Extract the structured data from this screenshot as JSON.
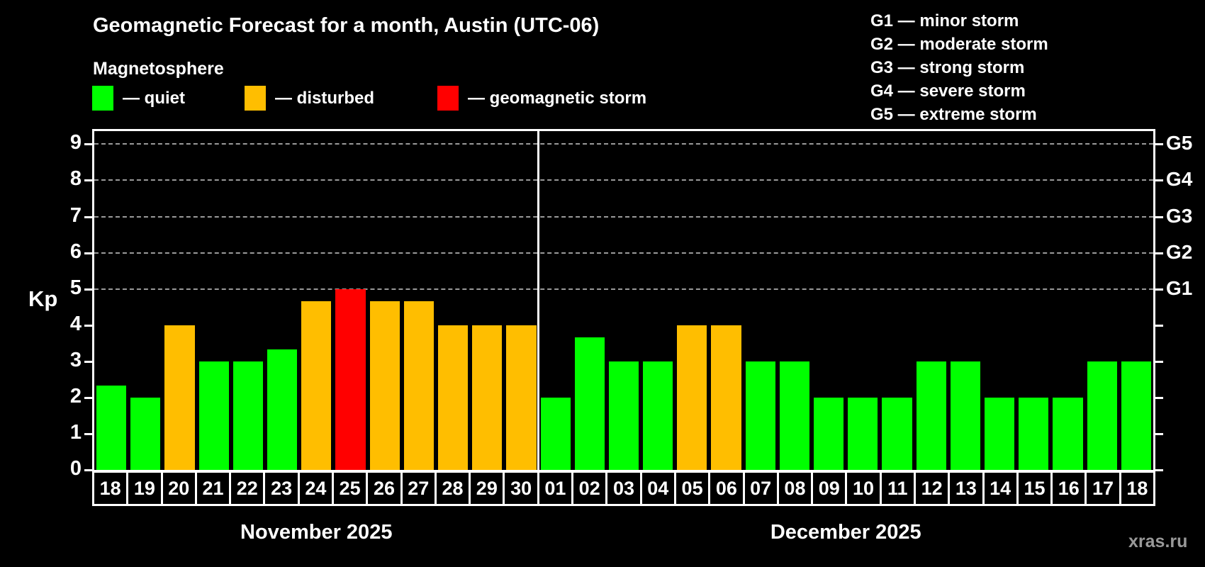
{
  "title": "Geomagnetic Forecast for a month, Austin (UTC-06)",
  "subtitle": "Magnetosphere",
  "legend": {
    "quiet_label": "— quiet",
    "disturbed_label": "— disturbed",
    "storm_label": "— geomagnetic storm"
  },
  "g_legend": [
    "G1 — minor storm",
    "G2 — moderate storm",
    "G3 — strong storm",
    "G4 — severe storm",
    "G5 — extreme storm"
  ],
  "watermark": "xras.ru",
  "colors": {
    "quiet": "#00ff00",
    "disturbed": "#ffbe00",
    "storm": "#ff0000",
    "axis": "#ffffff",
    "grid": "#9a9a9a",
    "background": "#000000",
    "watermark": "#999999"
  },
  "chart_data": {
    "type": "bar",
    "ylabel": "Kp",
    "ylim": [
      0,
      9.36
    ],
    "yticks": [
      0,
      1,
      2,
      3,
      4,
      5,
      6,
      7,
      8,
      9
    ],
    "gridlines_kp": [
      5,
      6,
      7,
      8,
      9
    ],
    "grid": "dashed",
    "right_axis": [
      {
        "kp": 5,
        "label": "G1"
      },
      {
        "kp": 6,
        "label": "G2"
      },
      {
        "kp": 7,
        "label": "G3"
      },
      {
        "kp": 8,
        "label": "G4"
      },
      {
        "kp": 9,
        "label": "G5"
      }
    ],
    "months": [
      {
        "label": "November 2025",
        "days": [
          {
            "day": "18",
            "kp": 2.33,
            "state": "quiet"
          },
          {
            "day": "19",
            "kp": 2.0,
            "state": "quiet"
          },
          {
            "day": "20",
            "kp": 4.0,
            "state": "disturbed"
          },
          {
            "day": "21",
            "kp": 3.0,
            "state": "quiet"
          },
          {
            "day": "22",
            "kp": 3.0,
            "state": "quiet"
          },
          {
            "day": "23",
            "kp": 3.33,
            "state": "quiet"
          },
          {
            "day": "24",
            "kp": 4.67,
            "state": "disturbed"
          },
          {
            "day": "25",
            "kp": 5.0,
            "state": "storm"
          },
          {
            "day": "26",
            "kp": 4.67,
            "state": "disturbed"
          },
          {
            "day": "27",
            "kp": 4.67,
            "state": "disturbed"
          },
          {
            "day": "28",
            "kp": 4.0,
            "state": "disturbed"
          },
          {
            "day": "29",
            "kp": 4.0,
            "state": "disturbed"
          },
          {
            "day": "30",
            "kp": 4.0,
            "state": "disturbed"
          }
        ]
      },
      {
        "label": "December 2025",
        "days": [
          {
            "day": "01",
            "kp": 2.0,
            "state": "quiet"
          },
          {
            "day": "02",
            "kp": 3.67,
            "state": "quiet"
          },
          {
            "day": "03",
            "kp": 3.0,
            "state": "quiet"
          },
          {
            "day": "04",
            "kp": 3.0,
            "state": "quiet"
          },
          {
            "day": "05",
            "kp": 4.0,
            "state": "disturbed"
          },
          {
            "day": "06",
            "kp": 4.0,
            "state": "disturbed"
          },
          {
            "day": "07",
            "kp": 3.0,
            "state": "quiet"
          },
          {
            "day": "08",
            "kp": 3.0,
            "state": "quiet"
          },
          {
            "day": "09",
            "kp": 2.0,
            "state": "quiet"
          },
          {
            "day": "10",
            "kp": 2.0,
            "state": "quiet"
          },
          {
            "day": "11",
            "kp": 2.0,
            "state": "quiet"
          },
          {
            "day": "12",
            "kp": 3.0,
            "state": "quiet"
          },
          {
            "day": "13",
            "kp": 3.0,
            "state": "quiet"
          },
          {
            "day": "14",
            "kp": 2.0,
            "state": "quiet"
          },
          {
            "day": "15",
            "kp": 2.0,
            "state": "quiet"
          },
          {
            "day": "16",
            "kp": 2.0,
            "state": "quiet"
          },
          {
            "day": "17",
            "kp": 3.0,
            "state": "quiet"
          },
          {
            "day": "18",
            "kp": 3.0,
            "state": "quiet"
          }
        ]
      }
    ]
  }
}
